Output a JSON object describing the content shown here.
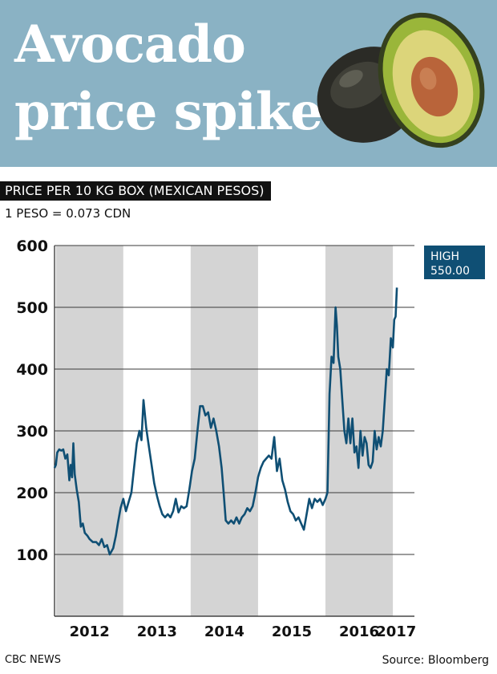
{
  "header": {
    "title_line1": "Avocado",
    "title_line2": "price spike"
  },
  "subtitle": "PRICE PER 10 KG BOX (MEXICAN PESOS)",
  "exchange_note": "1 PESO = 0.073 CDN",
  "footer": {
    "brand": "CBC NEWS",
    "source": "Source: Bloomberg"
  },
  "colors": {
    "banner": "#8ab2c4",
    "line": "#0f4f74",
    "shade": "#d4d4d4",
    "callout": "#0f4f74"
  },
  "chart_data": {
    "type": "line",
    "title": "PRICE PER 10 KG BOX (MEXICAN PESOS)",
    "xlabel": "",
    "ylabel": "",
    "ylim": [
      0,
      600
    ],
    "xlim": [
      2011.98,
      2017.32
    ],
    "grid": true,
    "y_ticks": [
      100,
      200,
      300,
      400,
      500,
      600
    ],
    "x_ticks": [
      {
        "label": "2012",
        "x": 2012.5
      },
      {
        "label": "2013",
        "x": 2013.5
      },
      {
        "label": "2014",
        "x": 2014.5
      },
      {
        "label": "2015",
        "x": 2015.5
      },
      {
        "label": "2016",
        "x": 2016.5
      },
      {
        "label": "2017",
        "x": 2017.05
      }
    ],
    "shaded_years": [
      2012,
      2014,
      2016
    ],
    "callout": {
      "line1": "HIGH",
      "line2": "550.00",
      "x": 2017.3,
      "y": 550
    },
    "series": [
      {
        "values": [
          [
            2011.98,
            240
          ],
          [
            2012.0,
            245
          ],
          [
            2012.02,
            265
          ],
          [
            2012.05,
            270
          ],
          [
            2012.08,
            268
          ],
          [
            2012.11,
            270
          ],
          [
            2012.14,
            255
          ],
          [
            2012.17,
            262
          ],
          [
            2012.2,
            220
          ],
          [
            2012.22,
            245
          ],
          [
            2012.24,
            225
          ],
          [
            2012.26,
            280
          ],
          [
            2012.28,
            230
          ],
          [
            2012.31,
            205
          ],
          [
            2012.34,
            185
          ],
          [
            2012.37,
            145
          ],
          [
            2012.4,
            150
          ],
          [
            2012.43,
            135
          ],
          [
            2012.47,
            130
          ],
          [
            2012.5,
            125
          ],
          [
            2012.55,
            120
          ],
          [
            2012.6,
            120
          ],
          [
            2012.64,
            115
          ],
          [
            2012.68,
            125
          ],
          [
            2012.72,
            112
          ],
          [
            2012.76,
            115
          ],
          [
            2012.8,
            100
          ],
          [
            2012.85,
            110
          ],
          [
            2012.89,
            130
          ],
          [
            2012.92,
            150
          ],
          [
            2012.96,
            175
          ],
          [
            2013.0,
            190
          ],
          [
            2013.04,
            170
          ],
          [
            2013.08,
            185
          ],
          [
            2013.12,
            200
          ],
          [
            2013.16,
            240
          ],
          [
            2013.2,
            280
          ],
          [
            2013.24,
            300
          ],
          [
            2013.27,
            285
          ],
          [
            2013.3,
            350
          ],
          [
            2013.34,
            305
          ],
          [
            2013.38,
            275
          ],
          [
            2013.42,
            245
          ],
          [
            2013.46,
            215
          ],
          [
            2013.5,
            195
          ],
          [
            2013.54,
            178
          ],
          [
            2013.58,
            165
          ],
          [
            2013.62,
            160
          ],
          [
            2013.66,
            165
          ],
          [
            2013.7,
            160
          ],
          [
            2013.74,
            170
          ],
          [
            2013.78,
            190
          ],
          [
            2013.82,
            168
          ],
          [
            2013.86,
            178
          ],
          [
            2013.9,
            175
          ],
          [
            2013.94,
            178
          ],
          [
            2013.98,
            205
          ],
          [
            2014.02,
            235
          ],
          [
            2014.06,
            255
          ],
          [
            2014.1,
            300
          ],
          [
            2014.14,
            340
          ],
          [
            2014.18,
            340
          ],
          [
            2014.22,
            325
          ],
          [
            2014.26,
            330
          ],
          [
            2014.3,
            305
          ],
          [
            2014.34,
            320
          ],
          [
            2014.38,
            300
          ],
          [
            2014.42,
            275
          ],
          [
            2014.46,
            240
          ],
          [
            2014.49,
            200
          ],
          [
            2014.52,
            155
          ],
          [
            2014.56,
            150
          ],
          [
            2014.6,
            155
          ],
          [
            2014.64,
            150
          ],
          [
            2014.68,
            160
          ],
          [
            2014.72,
            150
          ],
          [
            2014.76,
            160
          ],
          [
            2014.8,
            165
          ],
          [
            2014.84,
            175
          ],
          [
            2014.88,
            170
          ],
          [
            2014.92,
            178
          ],
          [
            2014.96,
            200
          ],
          [
            2015.0,
            225
          ],
          [
            2015.04,
            240
          ],
          [
            2015.08,
            250
          ],
          [
            2015.12,
            255
          ],
          [
            2015.16,
            260
          ],
          [
            2015.2,
            255
          ],
          [
            2015.24,
            290
          ],
          [
            2015.28,
            235
          ],
          [
            2015.32,
            255
          ],
          [
            2015.36,
            220
          ],
          [
            2015.4,
            205
          ],
          [
            2015.44,
            185
          ],
          [
            2015.48,
            170
          ],
          [
            2015.52,
            165
          ],
          [
            2015.56,
            155
          ],
          [
            2015.6,
            160
          ],
          [
            2015.64,
            150
          ],
          [
            2015.68,
            140
          ],
          [
            2015.72,
            165
          ],
          [
            2015.76,
            190
          ],
          [
            2015.8,
            175
          ],
          [
            2015.84,
            190
          ],
          [
            2015.88,
            185
          ],
          [
            2015.92,
            190
          ],
          [
            2015.96,
            180
          ],
          [
            2016.0,
            190
          ],
          [
            2016.03,
            200
          ],
          [
            2016.06,
            360
          ],
          [
            2016.09,
            420
          ],
          [
            2016.12,
            410
          ],
          [
            2016.15,
            500
          ],
          [
            2016.17,
            470
          ],
          [
            2016.19,
            420
          ],
          [
            2016.22,
            400
          ],
          [
            2016.25,
            350
          ],
          [
            2016.28,
            300
          ],
          [
            2016.31,
            280
          ],
          [
            2016.34,
            320
          ],
          [
            2016.37,
            280
          ],
          [
            2016.4,
            320
          ],
          [
            2016.43,
            265
          ],
          [
            2016.46,
            275
          ],
          [
            2016.49,
            240
          ],
          [
            2016.52,
            300
          ],
          [
            2016.55,
            260
          ],
          [
            2016.58,
            290
          ],
          [
            2016.61,
            280
          ],
          [
            2016.64,
            245
          ],
          [
            2016.67,
            240
          ],
          [
            2016.7,
            250
          ],
          [
            2016.73,
            300
          ],
          [
            2016.76,
            270
          ],
          [
            2016.79,
            290
          ],
          [
            2016.82,
            275
          ],
          [
            2016.85,
            300
          ],
          [
            2016.88,
            350
          ],
          [
            2016.91,
            400
          ],
          [
            2016.94,
            390
          ],
          [
            2016.97,
            450
          ],
          [
            2017.0,
            435
          ],
          [
            2017.02,
            480
          ],
          [
            2017.04,
            485
          ],
          [
            2017.06,
            532
          ]
        ]
      }
    ]
  }
}
